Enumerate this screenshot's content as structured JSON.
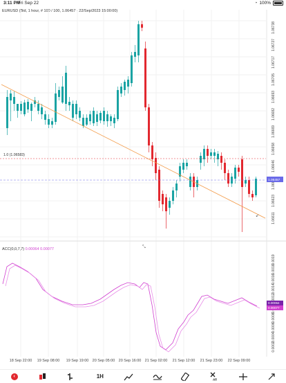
{
  "status_bar": {
    "time": "3:11 PM",
    "date": "Fri Sep 22",
    "battery": "100%"
  },
  "chart_title": "EURUSD (Bid, 1 hour, # 100 / 100, 1.06457 - 22/Sep/2023 15:00:00)",
  "level_label": "1.0 (1.06583)",
  "y_ticks": [
    "1.06738",
    "1.06727",
    "1.06717",
    "1.06705",
    "1.06693",
    "1.06682",
    "1.06669",
    "1.06658",
    "1.06646",
    "1.06635",
    "1.06623",
    "1.06611"
  ],
  "price_tags": {
    "bid": "1.06457",
    "osc_a": "0.00064",
    "osc_b": "0.00077"
  },
  "oscillator": {
    "name": "ACC(0,0,7,7)",
    "v1": "0.00064",
    "v2": "0.00077"
  },
  "osc_y_ticks": [
    "0.0019",
    "0.0018",
    "0.0016",
    "0.0014",
    "0.0012",
    "0.0010",
    "0.0008",
    "0.0006",
    "0.0004",
    "0.0002"
  ],
  "x_ticks": [
    "18 Sep 22:00",
    "19 Sep 08:00",
    "19 Sep 19:00",
    "20 Sep 05:00",
    "20 Sep 16:00",
    "21 Sep 02:00",
    "21 Sep 12:00",
    "21 Sep 23:00",
    "22 Sep 09:00"
  ],
  "toolbar": {
    "timeframe": "1H"
  },
  "colors": {
    "bull": "#1aa3a3",
    "bear": "#e2282f",
    "trend": "#f39c4a",
    "level": "#e2282f",
    "bidline": "#6a6ae8",
    "osc": "#d040d0"
  }
}
